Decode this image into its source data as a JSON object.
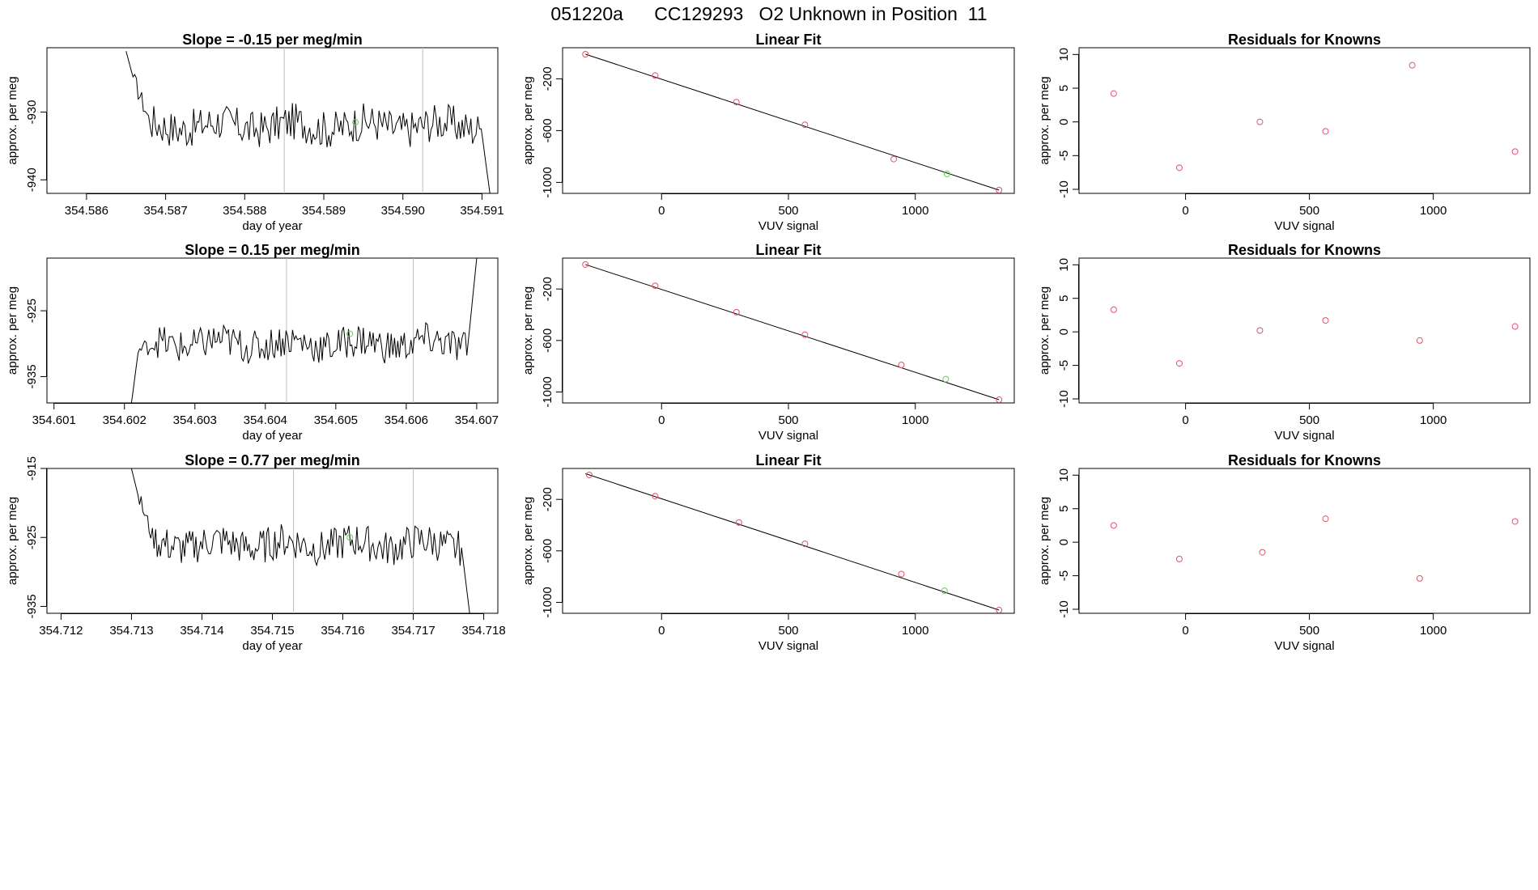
{
  "figure_title": "051220a      CC129293   O2 Unknown in Position  11",
  "colors": {
    "line": "#000000",
    "known": "#DF536B",
    "unknown": "#61D04F",
    "guide": "#BEBEBE"
  },
  "chart_data": [
    {
      "type": "line",
      "title": "Slope =  -0.15  per meg/min",
      "xlabel": "day of year",
      "ylabel": "approx. per meg",
      "xlim": [
        354.5855,
        354.5912
      ],
      "ylim": [
        -942,
        -920.5
      ],
      "xticks": [
        "354.586",
        "354.587",
        "354.588",
        "354.589",
        "354.590",
        "354.591"
      ],
      "xtick_values": [
        354.586,
        354.587,
        354.588,
        354.589,
        354.59,
        354.591
      ],
      "yticks": [
        "-930",
        "-940"
      ],
      "ytick_values": [
        -930,
        -940
      ],
      "vlines": [
        354.5885,
        354.59025
      ],
      "series_start": 354.5865,
      "series_end": 354.5911,
      "y_begin": -921,
      "y_end": -942,
      "y_mean": -932,
      "noise": 2.8,
      "ramp": -925,
      "special": {
        "x": 354.5894,
        "y": -931.5
      }
    },
    {
      "type": "scatter-fit",
      "title": "Linear Fit",
      "xlabel": "VUV signal",
      "ylabel": "approx. per meg",
      "xlim": [
        -390,
        1390
      ],
      "ylim": [
        -1085,
        40
      ],
      "xticks": [
        "0",
        "500",
        "1000"
      ],
      "xtick_values": [
        0,
        500,
        1000
      ],
      "yticks": [
        "-200",
        "-600",
        "-1000"
      ],
      "ytick_values": [
        -200,
        -600,
        -1000
      ],
      "known_x": [
        -300,
        -25,
        295,
        565,
        915,
        1330
      ],
      "known_y": [
        -10,
        -175,
        -380,
        -555,
        -820,
        -1060
      ],
      "unknown": {
        "x": 1125,
        "y": -935
      },
      "fit": {
        "x0": -300,
        "y0": -10,
        "x1": 1330,
        "y1": -1060
      }
    },
    {
      "type": "scatter",
      "title": "Residuals for Knowns",
      "xlabel": "VUV signal",
      "ylabel": "approx. per meg",
      "xlim": [
        -430,
        1390
      ],
      "ylim": [
        -10.6,
        11
      ],
      "xticks": [
        "0",
        "500",
        "1000"
      ],
      "xtick_values": [
        0,
        500,
        1000
      ],
      "yticks": [
        "10",
        "5",
        "0",
        "-5",
        "-10"
      ],
      "ytick_values": [
        10,
        5,
        0,
        -5,
        -10
      ],
      "x": [
        -290,
        -25,
        300,
        565,
        915,
        1330
      ],
      "y": [
        4.2,
        -6.8,
        0,
        -1.4,
        8.4,
        -4.4
      ]
    },
    {
      "type": "line",
      "title": "Slope =  0.15  per meg/min",
      "xlabel": "day of year",
      "ylabel": "approx. per meg",
      "xlim": [
        354.6009,
        354.6073
      ],
      "ylim": [
        -939,
        -917
      ],
      "xticks": [
        "354.601",
        "354.602",
        "354.603",
        "354.604",
        "354.605",
        "354.606",
        "354.607"
      ],
      "xtick_values": [
        354.601,
        354.602,
        354.603,
        354.604,
        354.605,
        354.606,
        354.607
      ],
      "yticks": [
        "-925",
        "-935"
      ],
      "ytick_values": [
        -925,
        -935
      ],
      "vlines": [
        354.6043,
        354.6061
      ],
      "series_start": 354.6021,
      "series_end": 354.607,
      "y_begin": -939,
      "y_end": -917,
      "y_mean": -930,
      "noise": 2.6,
      "ramp": -931,
      "special": {
        "x": 354.6052,
        "y": -928.5
      }
    },
    {
      "type": "scatter-fit",
      "title": "Linear Fit",
      "xlabel": "VUV signal",
      "ylabel": "approx. per meg",
      "xlim": [
        -390,
        1390
      ],
      "ylim": [
        -1085,
        40
      ],
      "xticks": [
        "0",
        "500",
        "1000"
      ],
      "xtick_values": [
        0,
        500,
        1000
      ],
      "yticks": [
        "-200",
        "-600",
        "-1000"
      ],
      "ytick_values": [
        -200,
        -600,
        -1000
      ],
      "known_x": [
        -300,
        -25,
        295,
        565,
        945,
        1330
      ],
      "known_y": [
        -10,
        -175,
        -380,
        -555,
        -790,
        -1060
      ],
      "unknown": {
        "x": 1120,
        "y": -900
      },
      "fit": {
        "x0": -300,
        "y0": -10,
        "x1": 1330,
        "y1": -1060
      }
    },
    {
      "type": "scatter",
      "title": "Residuals for Knowns",
      "xlabel": "VUV signal",
      "ylabel": "approx. per meg",
      "xlim": [
        -430,
        1390
      ],
      "ylim": [
        -10.6,
        11
      ],
      "xticks": [
        "0",
        "500",
        "1000"
      ],
      "xtick_values": [
        0,
        500,
        1000
      ],
      "yticks": [
        "10",
        "5",
        "0",
        "-5",
        "-10"
      ],
      "ytick_values": [
        10,
        5,
        0,
        -5,
        -10
      ],
      "x": [
        -290,
        -25,
        300,
        565,
        945,
        1330
      ],
      "y": [
        3.3,
        -4.7,
        0.2,
        1.7,
        -1.3,
        0.8
      ]
    },
    {
      "type": "line",
      "title": "Slope =  0.77  per meg/min",
      "xlabel": "day of year",
      "ylabel": "approx. per meg",
      "xlim": [
        354.7118,
        354.7182
      ],
      "ylim": [
        -936,
        -915
      ],
      "xticks": [
        "354.712",
        "354.713",
        "354.714",
        "354.715",
        "354.716",
        "354.717",
        "354.718"
      ],
      "xtick_values": [
        354.712,
        354.713,
        354.714,
        354.715,
        354.716,
        354.717,
        354.718
      ],
      "yticks": [
        "-915",
        "-925",
        "-935"
      ],
      "ytick_values": [
        -915,
        -925,
        -935
      ],
      "vlines": [
        354.7153,
        354.717
      ],
      "series_start": 354.713,
      "series_end": 354.7178,
      "y_begin": -915,
      "y_end": -936,
      "y_mean": -926,
      "noise": 2.6,
      "ramp": -919,
      "special": {
        "x": 354.7161,
        "y": -925
      }
    },
    {
      "type": "scatter-fit",
      "title": "Linear Fit",
      "xlabel": "VUV signal",
      "ylabel": "approx. per meg",
      "xlim": [
        -390,
        1390
      ],
      "ylim": [
        -1085,
        40
      ],
      "xticks": [
        "0",
        "500",
        "1000"
      ],
      "xtick_values": [
        0,
        500,
        1000
      ],
      "yticks": [
        "-200",
        "-600",
        "-1000"
      ],
      "ytick_values": [
        -200,
        -600,
        -1000
      ],
      "known_x": [
        -285,
        -25,
        305,
        565,
        945,
        1330
      ],
      "known_y": [
        -10,
        -175,
        -380,
        -545,
        -780,
        -1060
      ],
      "unknown": {
        "x": 1115,
        "y": -910
      },
      "fit": {
        "x0": -300,
        "y0": 0,
        "x1": 1330,
        "y1": -1060
      }
    },
    {
      "type": "scatter",
      "title": "Residuals for Knowns",
      "xlabel": "VUV signal",
      "ylabel": "approx. per meg",
      "xlim": [
        -430,
        1390
      ],
      "ylim": [
        -10.6,
        11
      ],
      "xticks": [
        "0",
        "500",
        "1000"
      ],
      "xtick_values": [
        0,
        500,
        1000
      ],
      "yticks": [
        "10",
        "5",
        "0",
        "-5",
        "-10"
      ],
      "ytick_values": [
        10,
        5,
        0,
        -5,
        -10
      ],
      "x": [
        -290,
        -25,
        310,
        565,
        945,
        1330
      ],
      "y": [
        2.5,
        -2.5,
        -1.5,
        3.5,
        -5.4,
        3.1
      ]
    }
  ]
}
